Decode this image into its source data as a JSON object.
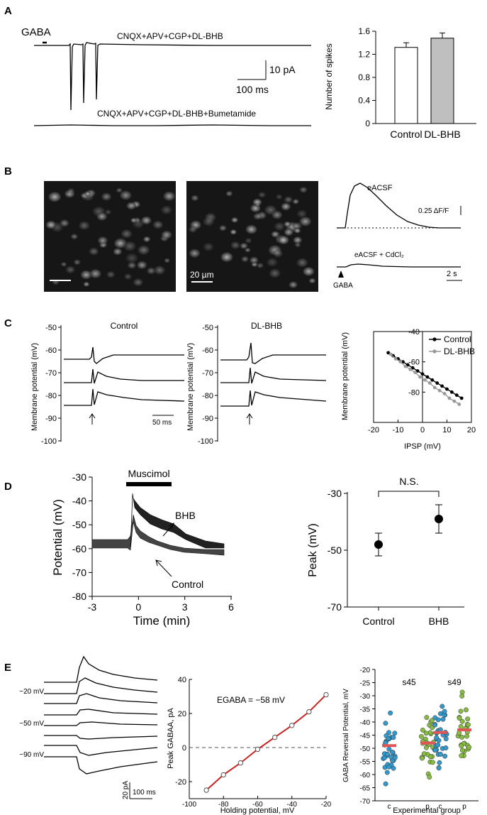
{
  "panels": {
    "a": "A",
    "b": "B",
    "c": "C",
    "d": "D",
    "e": "E"
  },
  "a": {
    "gaba": "GABA",
    "trace_top": "CNQX+APV+CGP+DL-BHB",
    "trace_bottom": "CNQX+APV+CGP+DL-BHB+Bumetamide",
    "scale_y": "10 pA",
    "scale_x": "100 ms",
    "chart": {
      "type": "bar",
      "ylabel": "Number of spikes",
      "categories": [
        "Control",
        "DL-BHB"
      ],
      "values": [
        1.32,
        1.48
      ],
      "errors": [
        0.08,
        0.09
      ],
      "colors": [
        "#ffffff",
        "#bfbfbf"
      ],
      "ylim": [
        0,
        1.6
      ],
      "yticks": [
        "0",
        "0.4",
        "0.8",
        "1.2",
        "1.6"
      ]
    }
  },
  "b": {
    "micro_scale": "20 µm",
    "trace1": "eACSF",
    "trace2": "eACSF + CdCl₂",
    "scale_f": "0.25 ΔF/F",
    "scale_t": "2 s",
    "gaba": "GABA"
  },
  "c": {
    "title1": "Control",
    "title2": "DL-BHB",
    "ylabel": "Membrane potential (mV)",
    "yticks": [
      "-50",
      "-60",
      "-70",
      "-80",
      "-90",
      "-100"
    ],
    "scale": "50 ms",
    "chart": {
      "type": "line",
      "xlabel": "IPSP (mV)",
      "ylabel": "Membrane potential (mV)",
      "xlim": [
        -20,
        20
      ],
      "ylim": [
        -100,
        -40
      ],
      "xticks": [
        "-20",
        "-10",
        "0",
        "10",
        "20"
      ],
      "yticks": [
        "-40",
        "-60",
        "-80"
      ],
      "series": [
        {
          "name": "Control",
          "color": "#000000",
          "x": [
            -14,
            -12,
            -10,
            -8,
            -6,
            -4,
            -2,
            0,
            2,
            4,
            6,
            8,
            10,
            12,
            14,
            16
          ],
          "y": [
            -54,
            -56,
            -58,
            -60,
            -62,
            -64,
            -66,
            -68,
            -70,
            -72,
            -74,
            -76,
            -78,
            -80,
            -82,
            -84
          ]
        },
        {
          "name": "DL-BHB",
          "color": "#999999",
          "x": [
            -13,
            -11,
            -9,
            -7,
            -5,
            -3,
            -1,
            1,
            3,
            5,
            7,
            9,
            11,
            13,
            15
          ],
          "y": [
            -55,
            -58,
            -60,
            -63,
            -65,
            -67,
            -70,
            -72,
            -74,
            -77,
            -79,
            -81,
            -84,
            -86,
            -88
          ]
        }
      ]
    }
  },
  "d": {
    "drug": "Muscimol",
    "label_bhb": "BHB",
    "label_control": "Control",
    "chart_trace": {
      "type": "line",
      "xlabel": "Time (min)",
      "ylabel": "Potential (mV)",
      "xlim": [
        -3,
        6
      ],
      "ylim": [
        -80,
        -30
      ],
      "xticks": [
        "-3",
        "0",
        "3",
        "6"
      ],
      "yticks": [
        "-30",
        "-40",
        "-50",
        "-60",
        "-70",
        "-80"
      ]
    },
    "chart_peak": {
      "type": "scatter",
      "ylabel": "Peak (mV)",
      "categories": [
        "Control",
        "BHB"
      ],
      "values": [
        -48,
        -39
      ],
      "errors": [
        4,
        5
      ],
      "ylim": [
        -70,
        -30
      ],
      "yticks": [
        "-30",
        "-50",
        "-70"
      ],
      "annotation": "N.S."
    }
  },
  "e": {
    "trace_labels": [
      "−20 mV",
      "−50 mV",
      "−90 mV"
    ],
    "scale_y": "20 pA",
    "scale_x": "100 ms",
    "iv": {
      "type": "line",
      "xlabel": "Holding potential, mV",
      "ylabel": "Peak GABAA, pA",
      "annotation": "EGABA = −58 mV",
      "xlim": [
        -100,
        -20
      ],
      "ylim": [
        -30,
        40
      ],
      "xticks": [
        "-100",
        "-80",
        "-60",
        "-40",
        "-20"
      ],
      "yticks": [
        "40",
        "20",
        "0",
        "-20"
      ],
      "x": [
        -90,
        -80,
        -70,
        -60,
        -50,
        -40,
        -30,
        -20
      ],
      "y": [
        -25,
        -16,
        -9,
        -1,
        6,
        13,
        21,
        31
      ]
    },
    "dots": {
      "type": "scatter",
      "xlabel": "Experimental group",
      "ylabel": "GABA Reversal Potential, mV",
      "ylim": [
        -70,
        -20
      ],
      "yticks": [
        "-20",
        "-25",
        "-30",
        "-35",
        "-40",
        "-45",
        "-50",
        "-55",
        "-60",
        "-65",
        "-70"
      ],
      "groups": [
        "s45",
        "s49"
      ],
      "categories": [
        "c",
        "p",
        "c",
        "p"
      ],
      "colors": [
        "#3399cc",
        "#88bb44"
      ],
      "medians": [
        -49,
        -48,
        -44,
        -43
      ]
    }
  }
}
